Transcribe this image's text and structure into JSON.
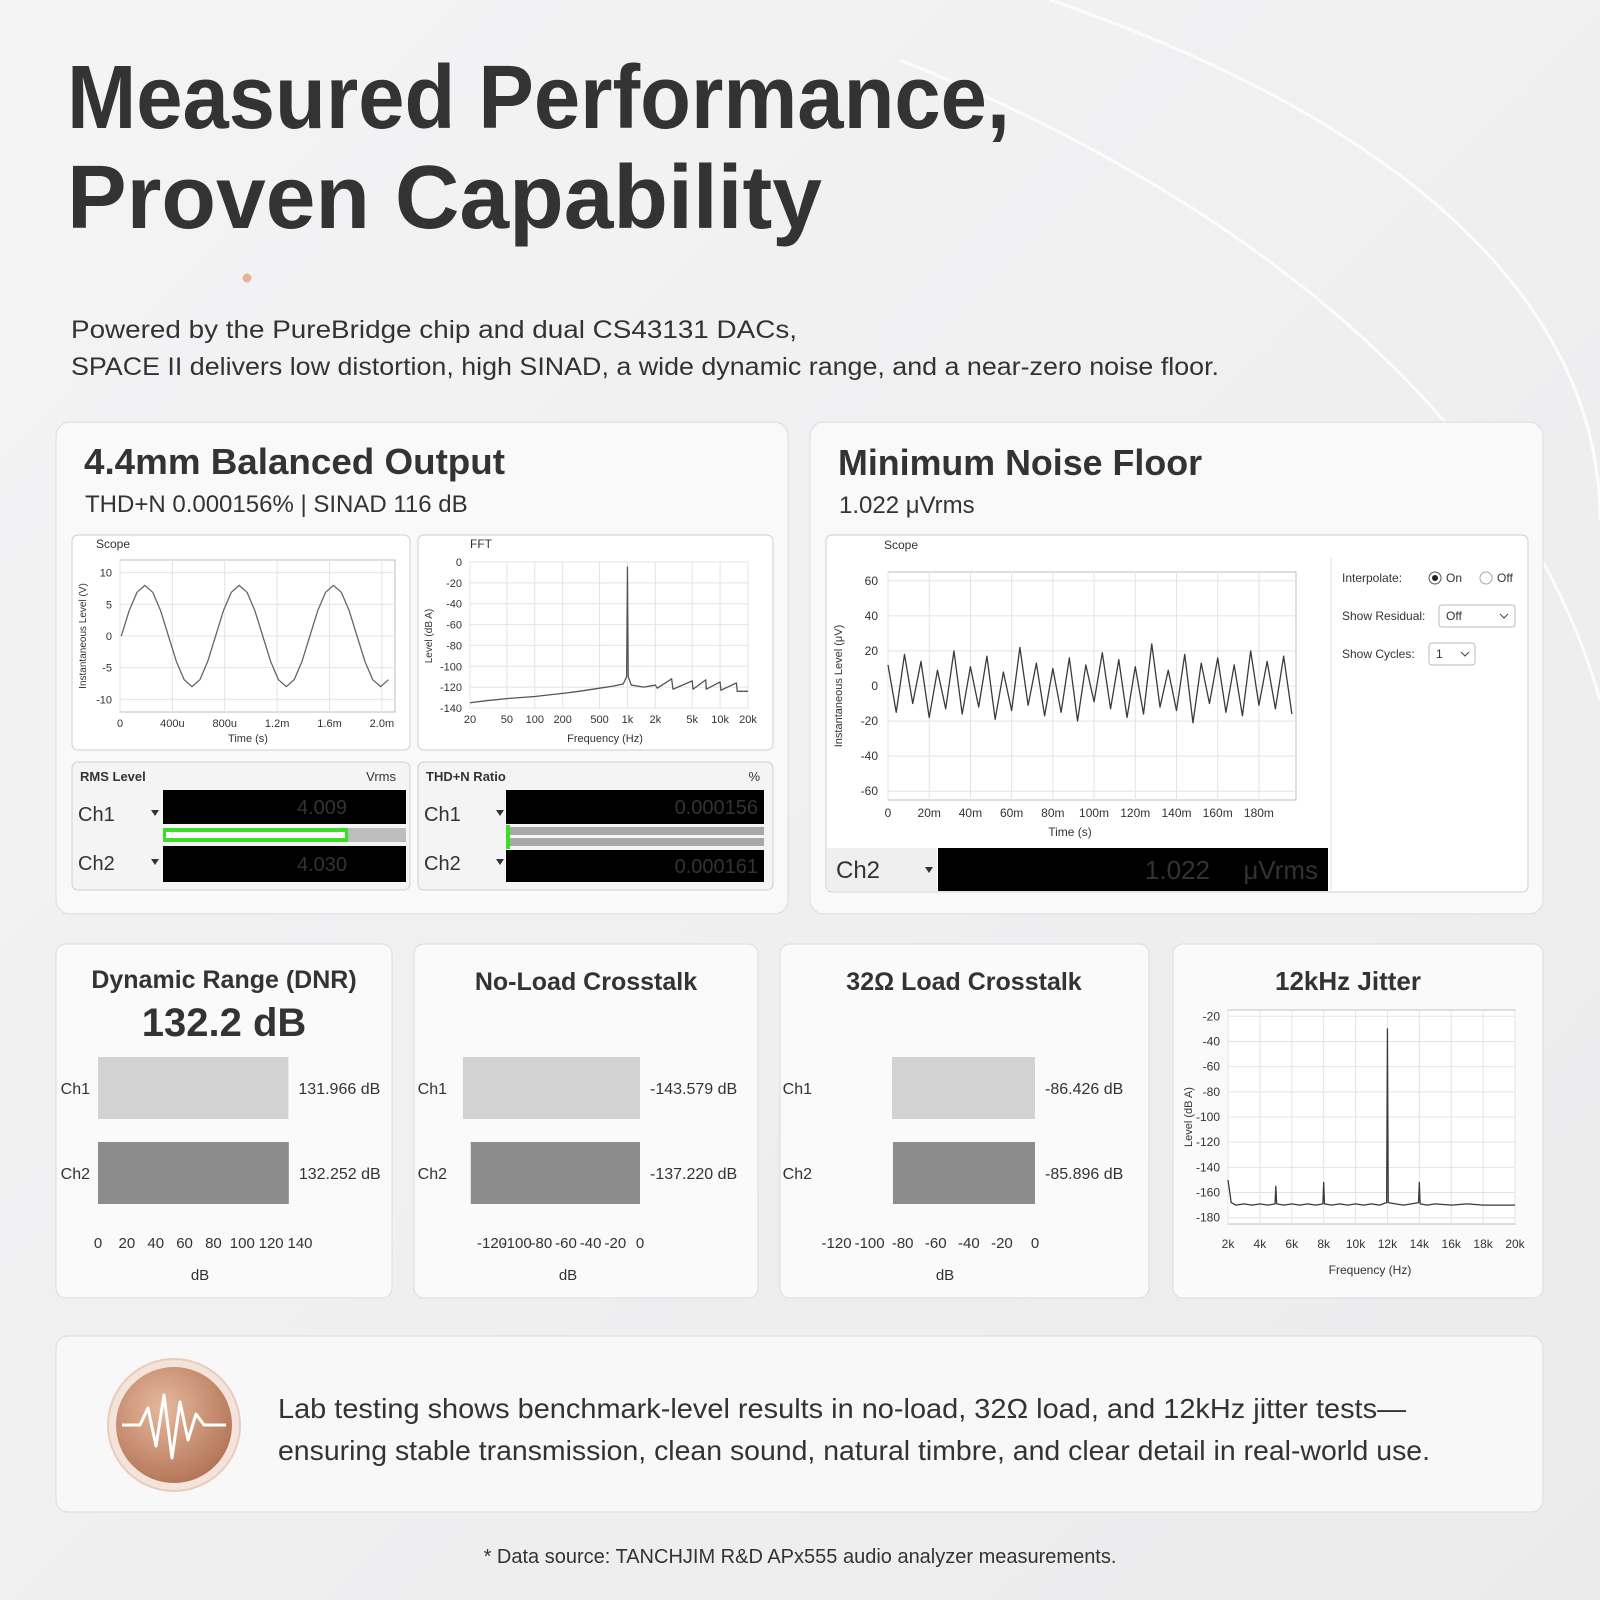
{
  "header": {
    "title": [
      "Measured Performance,",
      "Proven Capability"
    ],
    "intro": [
      "Powered by the PureBridge chip and dual CS43131 DACs,",
      "SPACE II delivers low distortion, high SINAD, a wide dynamic range, and a near-zero noise floor."
    ]
  },
  "panels": [
    {
      "title": "4.4mm Balanced Output",
      "subtitle": "THD+N 0.000156% | SINAD 116 dB",
      "meters": [
        {
          "title": "RMS Level",
          "unit": "Vrms",
          "rows": [
            {
              "channel": "Ch1",
              "reading": "4.009"
            },
            {
              "channel": "Ch2",
              "reading": "4.030"
            }
          ]
        },
        {
          "title": "THD+N Ratio",
          "unit": "%",
          "rows": [
            {
              "channel": "Ch1",
              "reading": "0.000156"
            },
            {
              "channel": "Ch2",
              "reading": "0.000161"
            }
          ]
        }
      ]
    },
    {
      "title": "Minimum Noise Floor",
      "subtitle": "1.022 μVrms",
      "controls": {
        "interpolate": "Interpolate:",
        "on": "On",
        "off": "Off",
        "residual": "Show Residual:",
        "residual_value": "Off",
        "cycles": "Show Cycles:",
        "cycles_value": "1"
      },
      "meter": {
        "channel": "Ch2",
        "reading": "1.022",
        "unit": "μVrms"
      }
    }
  ],
  "chart_data": [
    {
      "type": "line",
      "title": "Scope",
      "xlabel": "Time (s)",
      "ylabel": "Instantaneous Level (V)",
      "color": "#666666",
      "grid": true,
      "x": [
        1e-05,
        7e-05,
        0.00013,
        0.00019,
        0.00025,
        0.00031,
        0.00037,
        0.00043,
        0.00049,
        0.00055,
        0.00061,
        0.00067,
        0.00073,
        0.00079,
        0.00085,
        0.00091,
        0.00097,
        0.00103,
        0.00109,
        0.00115,
        0.00121,
        0.00127,
        0.00133,
        0.00139,
        0.00145,
        0.00151,
        0.00157,
        0.00163,
        0.00169,
        0.00175,
        0.00181,
        0.00187,
        0.00193,
        0.00199,
        0.00205
      ],
      "values": [
        0,
        4,
        6.9,
        8,
        6.9,
        4,
        0,
        -4,
        -6.9,
        -8,
        -6.9,
        -4,
        0,
        4,
        6.9,
        8,
        6.9,
        4,
        0,
        -4,
        -6.9,
        -8,
        -6.9,
        -4,
        0,
        4,
        6.9,
        8,
        6.9,
        4,
        0,
        -4,
        -6.9,
        -8,
        -6.9
      ],
      "xlim": [
        0,
        0.0021
      ],
      "ylim": [
        -12,
        12
      ],
      "xticks": [
        0,
        {
          "value": 0.0004,
          "label": "400u"
        },
        {
          "value": 0.0008,
          "label": "800u"
        },
        {
          "value": 0.0012,
          "label": "1.2m"
        },
        {
          "value": 0.0016,
          "label": "1.6m"
        },
        {
          "value": 0.002,
          "label": "2.0m"
        }
      ],
      "yticks": [
        10,
        5,
        0,
        -5,
        -10
      ]
    },
    {
      "type": "line",
      "title": "FFT",
      "xlabel": "Frequency (Hz)",
      "ylabel": "Level (dB A)",
      "color": "#555555",
      "grid": true,
      "log_x": true,
      "x": [
        20,
        30,
        50,
        100,
        200,
        300,
        500,
        700,
        900,
        980,
        1000,
        1020,
        1100,
        1500,
        2000,
        2100,
        3000,
        3100,
        5000,
        5100,
        7000,
        7100,
        10000,
        10200,
        15000,
        15300,
        20000
      ],
      "values": [
        -135,
        -133,
        -131,
        -129,
        -126,
        -124,
        -121,
        -119,
        -117,
        -110,
        -5,
        -110,
        -118,
        -120,
        -118,
        -121,
        -112,
        -122,
        -114,
        -122,
        -113,
        -122,
        -115,
        -123,
        -116,
        -124,
        -124
      ],
      "xlim": [
        20,
        20000
      ],
      "ylim": [
        -140,
        0
      ],
      "xticks": [
        20,
        50,
        100,
        200,
        500,
        {
          "value": 1000,
          "label": "1k"
        },
        {
          "value": 2000,
          "label": "2k"
        },
        {
          "value": 5000,
          "label": "5k"
        },
        {
          "value": 10000,
          "label": "10k"
        },
        {
          "value": 20000,
          "label": "20k"
        }
      ],
      "yticks": [
        0,
        -20,
        -40,
        -60,
        -80,
        -100,
        -120,
        -140
      ]
    },
    {
      "type": "line",
      "title": "Scope",
      "xlabel": "Time (s)",
      "ylabel": "Instantaneous Level (μV)",
      "color": "#3a3a3a",
      "grid": true,
      "x": [
        0,
        0.004,
        0.008,
        0.012,
        0.016,
        0.02,
        0.024,
        0.028,
        0.032,
        0.036,
        0.04,
        0.044,
        0.048,
        0.052,
        0.056,
        0.06,
        0.064,
        0.068,
        0.072,
        0.076,
        0.08,
        0.084,
        0.088,
        0.092,
        0.096,
        0.1,
        0.104,
        0.108,
        0.112,
        0.116,
        0.12,
        0.124,
        0.128,
        0.132,
        0.136,
        0.14,
        0.144,
        0.148,
        0.152,
        0.156,
        0.16,
        0.164,
        0.168,
        0.172,
        0.176,
        0.18,
        0.184,
        0.188,
        0.192,
        0.196
      ],
      "values": [
        12,
        -15,
        18,
        -10,
        14,
        -18,
        9,
        -13,
        20,
        -16,
        11,
        -12,
        17,
        -19,
        8,
        -14,
        22,
        -11,
        13,
        -17,
        10,
        -15,
        16,
        -20,
        12,
        -9,
        19,
        -13,
        15,
        -18,
        11,
        -16,
        24,
        -12,
        9,
        -14,
        18,
        -21,
        13,
        -10,
        16,
        -15,
        12,
        -17,
        20,
        -11,
        14,
        -13,
        17,
        -16
      ],
      "xlim": [
        0,
        0.198
      ],
      "ylim": [
        -65,
        65
      ],
      "xticks": [
        0,
        {
          "value": 0.02,
          "label": "20m"
        },
        {
          "value": 0.04,
          "label": "40m"
        },
        {
          "value": 0.06,
          "label": "60m"
        },
        {
          "value": 0.08,
          "label": "80m"
        },
        {
          "value": 0.1,
          "label": "100m"
        },
        {
          "value": 0.12,
          "label": "120m"
        },
        {
          "value": 0.14,
          "label": "140m"
        },
        {
          "value": 0.16,
          "label": "160m"
        },
        {
          "value": 0.18,
          "label": "180m"
        }
      ],
      "yticks": [
        60,
        40,
        20,
        0,
        -20,
        -40,
        -60
      ]
    },
    {
      "type": "bar",
      "orientation": "horizontal",
      "title": "Dynamic Range (DNR)",
      "headline": "132.2 dB",
      "xlabel": "dB",
      "categories": [
        "Ch1",
        "Ch2"
      ],
      "values": [
        131.966,
        132.252
      ],
      "value_labels": [
        "131.966 dB",
        "132.252 dB"
      ],
      "colors": [
        "#d2d2d2",
        "#8c8c8c"
      ],
      "xlim": [
        0,
        140
      ],
      "xticks": [
        0,
        20,
        40,
        60,
        80,
        100,
        120,
        140
      ]
    },
    {
      "type": "bar",
      "orientation": "horizontal",
      "title": "No-Load Crosstalk",
      "xlabel": "dB",
      "categories": [
        "Ch1",
        "Ch2"
      ],
      "values": [
        -143.579,
        -137.22
      ],
      "value_labels": [
        "-143.579 dB",
        "-137.220 dB"
      ],
      "colors": [
        "#d2d2d2",
        "#8c8c8c"
      ],
      "xlim": [
        -150,
        0
      ],
      "xticks": [
        -120,
        -100,
        -80,
        -60,
        -40,
        -20,
        0
      ]
    },
    {
      "type": "bar",
      "orientation": "horizontal",
      "title": "32Ω Load Crosstalk",
      "xlabel": "dB",
      "categories": [
        "Ch1",
        "Ch2"
      ],
      "values": [
        -86.426,
        -85.896
      ],
      "value_labels": [
        "-86.426 dB",
        "-85.896 dB"
      ],
      "colors": [
        "#d2d2d2",
        "#8c8c8c"
      ],
      "xlim": [
        -130,
        0
      ],
      "xticks": [
        -120,
        -100,
        -80,
        -60,
        -40,
        -20,
        0
      ]
    },
    {
      "type": "line",
      "title": "12kHz Jitter",
      "xlabel": "Frequency (Hz)",
      "ylabel": "Level (dB A)",
      "color": "#3a3a3a",
      "grid": true,
      "x": [
        2000,
        2200,
        2500,
        3000,
        3500,
        4000,
        4500,
        4950,
        5000,
        5050,
        5500,
        6000,
        6500,
        7000,
        7500,
        7950,
        8000,
        8050,
        8500,
        9000,
        9500,
        10000,
        10500,
        11000,
        11500,
        11950,
        12000,
        12050,
        12500,
        13000,
        13500,
        13950,
        14000,
        14050,
        14500,
        15000,
        16000,
        17000,
        18000,
        19000,
        20000
      ],
      "values": [
        -150,
        -168,
        -170,
        -169,
        -170,
        -169,
        -170,
        -169,
        -155,
        -169,
        -170,
        -169,
        -170,
        -169,
        -170,
        -169,
        -152,
        -169,
        -170,
        -169,
        -170,
        -169,
        -170,
        -169,
        -170,
        -168,
        -30,
        -168,
        -169,
        -170,
        -169,
        -168,
        -152,
        -169,
        -170,
        -169,
        -170,
        -169,
        -170,
        -170,
        -170
      ],
      "xlim": [
        2000,
        20000
      ],
      "ylim": [
        -185,
        -15
      ],
      "xticks": [
        {
          "value": 2000,
          "label": "2k"
        },
        {
          "value": 4000,
          "label": "4k"
        },
        {
          "value": 6000,
          "label": "6k"
        },
        {
          "value": 8000,
          "label": "8k"
        },
        {
          "value": 10000,
          "label": "10k"
        },
        {
          "value": 12000,
          "label": "12k"
        },
        {
          "value": 14000,
          "label": "14k"
        },
        {
          "value": 16000,
          "label": "16k"
        },
        {
          "value": 18000,
          "label": "18k"
        },
        {
          "value": 20000,
          "label": "20k"
        }
      ],
      "yticks": [
        -20,
        -40,
        -60,
        -80,
        -100,
        -120,
        -140,
        -160,
        -180
      ]
    }
  ],
  "footer": {
    "banner": [
      "Lab testing shows benchmark-level results in no-load, 32Ω load, and 12kHz jitter tests—",
      "ensuring stable transmission, clean sound, natural timbre, and clear detail in real-world use."
    ],
    "source": "* Data source: TANCHJIM R&D APx555 audio analyzer measurements."
  }
}
